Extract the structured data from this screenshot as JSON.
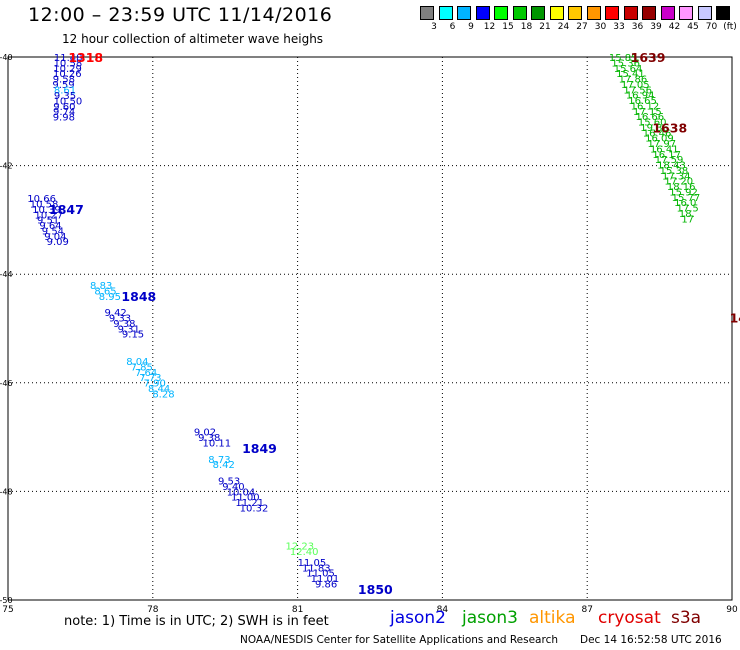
{
  "title": "12:00 – 23:59 UTC 11/14/2016",
  "subtitle": "12 hour collection of altimeter wave heighs",
  "scale": {
    "labels": [
      "3",
      "6",
      "9",
      "12",
      "15",
      "18",
      "21",
      "24",
      "27",
      "30",
      "33",
      "36",
      "39",
      "42",
      "45",
      "70",
      "(ft)"
    ],
    "colors": [
      "#7f7f7f",
      "#00ffff",
      "#00b4ff",
      "#0000ff",
      "#00ff00",
      "#00c800",
      "#009600",
      "#ffff00",
      "#ffc800",
      "#ff9600",
      "#ff0000",
      "#c80000",
      "#960000",
      "#c800c8",
      "#ff96ff",
      "#c8c8ff",
      "#000000"
    ]
  },
  "map": {
    "lon_ticks": [
      "75",
      "78",
      "81",
      "84",
      "87",
      "90"
    ],
    "lat_ticks": [
      "-40",
      "-42",
      "-44",
      "-46",
      "-48",
      "-50"
    ]
  },
  "track_labels": [
    {
      "text": "1318",
      "color": "#ff0000",
      "lon": 76.25,
      "lat": -40.0
    },
    {
      "text": "1847",
      "color": "#0000c8",
      "lon": 75.85,
      "lat": -42.8
    },
    {
      "text": "1848",
      "color": "#0000c8",
      "lon": 77.35,
      "lat": -44.4
    },
    {
      "text": "1849",
      "color": "#0000c8",
      "lon": 79.85,
      "lat": -47.2
    },
    {
      "text": "1850",
      "color": "#0000c8",
      "lon": 82.25,
      "lat": -49.8
    },
    {
      "text": "1639",
      "color": "#800000",
      "lon": 87.9,
      "lat": -40.0
    },
    {
      "text": "1638",
      "color": "#800000",
      "lon": 88.35,
      "lat": -41.3
    },
    {
      "text": "14",
      "color": "#800000",
      "lon": 89.95,
      "lat": -44.8
    }
  ],
  "tracks": [
    {
      "name": "jason2 1318",
      "color": "#0000c8",
      "start": [
        75.95,
        -40.0
      ],
      "step": [
        -0.006,
        0.099
      ],
      "values": [
        "11.48",
        "10.58",
        "10.29",
        "10.26",
        "9.58",
        "9.59"
      ]
    },
    {
      "name": "jason2 1318b",
      "color": "#00b4ff",
      "start": [
        75.95,
        -40.6
      ],
      "step": [
        0,
        0.099
      ],
      "values": [
        "8.61"
      ]
    },
    {
      "name": "jason2 1318c",
      "color": "#0000c8",
      "start": [
        75.95,
        -40.7
      ],
      "step": [
        -0.006,
        0.099
      ],
      "values": [
        "9.35",
        "10.50",
        "9.60",
        "9.74",
        "9.98"
      ]
    },
    {
      "name": "jason2 1847a",
      "color": "#0000c8",
      "start": [
        75.4,
        -42.6
      ],
      "step": [
        0.05,
        0.099
      ],
      "values": [
        "10.66",
        "10.58",
        "10.39",
        "10.27",
        "9.51",
        "9.64",
        "9.54",
        "9.04",
        "9.09"
      ]
    },
    {
      "name": "jason2 1848a",
      "color": "#00b4ff",
      "start": [
        76.7,
        -44.2
      ],
      "step": [
        0.09,
        0.099
      ],
      "values": [
        "8.83",
        "8.65",
        "8.95"
      ]
    },
    {
      "name": "jason2 1848b",
      "color": "#0000c8",
      "start": [
        77.0,
        -44.7
      ],
      "step": [
        0.09,
        0.099
      ],
      "values": [
        "9.42",
        "9.33",
        "9.38",
        "9.31",
        "9.15"
      ]
    },
    {
      "name": "jason2 1848c",
      "color": "#00b4ff",
      "start": [
        77.45,
        -45.6
      ],
      "step": [
        0.09,
        0.099
      ],
      "values": [
        "8.04",
        "7.85",
        "7.64",
        "7.73",
        "7.90",
        "8.44",
        "8.28"
      ]
    },
    {
      "name": "jason2 1849a",
      "color": "#0000c8",
      "start": [
        78.85,
        -46.9
      ],
      "step": [
        0.09,
        0.099
      ],
      "values": [
        "9.02",
        "9.38",
        "10.11"
      ]
    },
    {
      "name": "jason2 1849b",
      "color": "#00b4ff",
      "start": [
        79.15,
        -47.4
      ],
      "step": [
        0.09,
        0.099
      ],
      "values": [
        "8.73",
        "8.42"
      ]
    },
    {
      "name": "jason2 1849c",
      "color": "#0000c8",
      "start": [
        79.35,
        -47.8
      ],
      "step": [
        0.09,
        0.099
      ],
      "values": [
        "9.53",
        "9.40",
        "10.04",
        "11.00",
        "11.21",
        "10.32"
      ]
    },
    {
      "name": "jason2 1850a",
      "color": "#5aff5a",
      "start": [
        80.75,
        -49.0
      ],
      "step": [
        0.09,
        0.099
      ],
      "values": [
        "12.23",
        "12.40"
      ]
    },
    {
      "name": "jason2 1850b",
      "color": "#0000c8",
      "start": [
        81.0,
        -49.3
      ],
      "step": [
        0.09,
        0.099
      ],
      "values": [
        "11.05",
        "11.83",
        "11.05",
        "11.01",
        "9.86"
      ]
    },
    {
      "name": "jason3 1639",
      "color": "#00b400",
      "start": [
        87.45,
        -40.0
      ],
      "step": [
        0.05,
        0.099
      ],
      "values": [
        "15.85",
        "15.36",
        "15.64",
        "15.41",
        "17.86",
        "17.05",
        "17.56",
        "16.94",
        "16.65",
        "16.12",
        "17.15",
        "16.66",
        "15.60",
        "19.36",
        "16.46",
        "16.09",
        "17.97",
        "16.41",
        "16.17",
        "17.59",
        "18.43",
        "15.38",
        "17.34",
        "17.20",
        "18.16",
        "15.92",
        "15.77",
        "16.0",
        "17.5",
        "18.",
        "17"
      ]
    }
  ],
  "note": "note:  1) Time is in UTC;  2) SWH is in feet",
  "missions": [
    {
      "name": "jason2",
      "color": "#0000e0"
    },
    {
      "name": "jason3",
      "color": "#00a000"
    },
    {
      "name": "altika",
      "color": "#ff9600"
    },
    {
      "name": "cryosat",
      "color": "#e00000"
    },
    {
      "name": "s3a",
      "color": "#800000"
    }
  ],
  "credit": "NOAA/NESDIS Center for Satellite Applications and Research",
  "timestamp": "Dec 14 16:52:58 UTC 2016"
}
